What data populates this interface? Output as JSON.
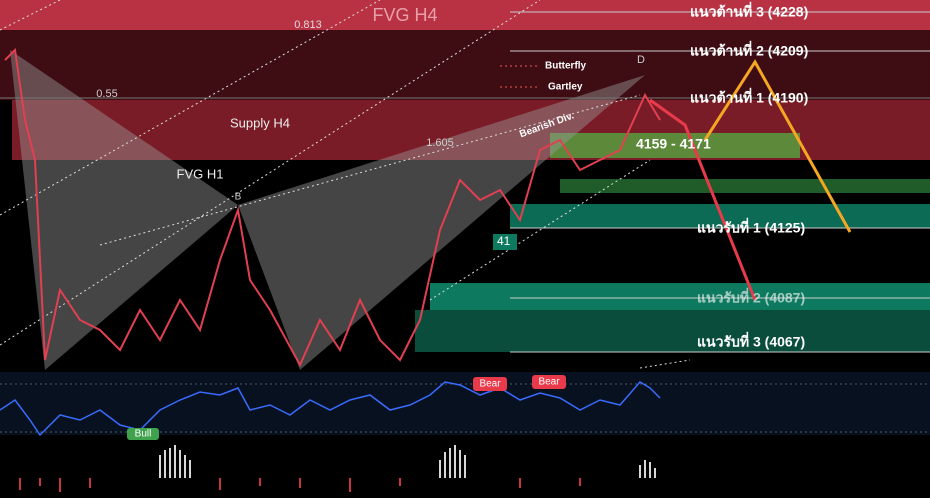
{
  "zones": {
    "fvg_h4": "FVG H4",
    "supply_h4": "Supply H4",
    "fvg_h1": "FVG H1",
    "entry_zone": "4159 - 4171"
  },
  "fib": {
    "top": "0.813",
    "mid": "0.55",
    "ext": "1.605"
  },
  "patterns": {
    "butterfly": "Butterfly",
    "gartley": "Gartley",
    "point_d": "D",
    "point_b": "B",
    "divergence": "Bearish Div.",
    "price_tag": "41"
  },
  "resistance": [
    "แนวต้านที่ 3 (4228)",
    "แนวต้านที่ 2 (4209)",
    "แนวต้านที่ 1 (4190)"
  ],
  "support": [
    "แนวรับที่ 1 (4125)",
    "แนวรับที่ 2 (4087)",
    "แนวรับที่ 3 (4067)"
  ],
  "indicator": {
    "signal_1": "Bear",
    "signal_2": "Bear",
    "signal_3": "Bull"
  }
}
